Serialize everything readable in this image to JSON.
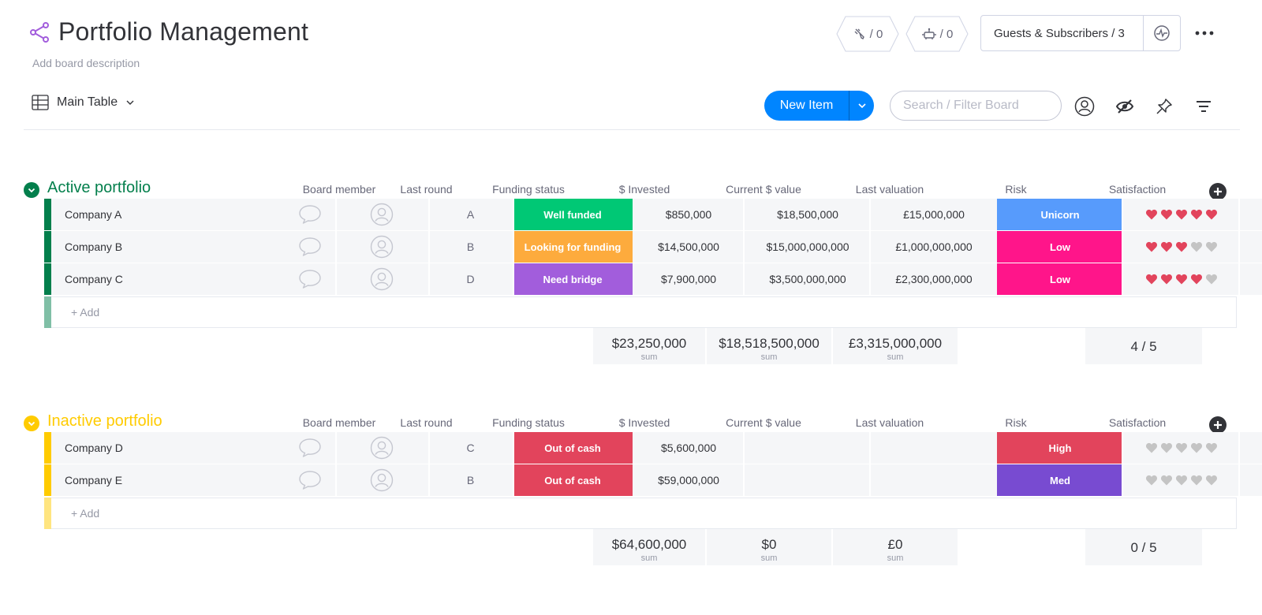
{
  "board": {
    "title": "Portfolio Management",
    "description": "Add board description",
    "integrations_count": "/ 0",
    "automations_count": "/ 0",
    "guests_label": "Guests & Subscribers / 3"
  },
  "toolbar": {
    "view_label": "Main Table",
    "new_item_label": "New Item",
    "search_placeholder": "Search / Filter Board"
  },
  "colors": {
    "active_group": "#037f4c",
    "inactive_group": "#ffcb00",
    "well_funded": "#00c875",
    "looking_for_funding": "#fdab3d",
    "need_bridge": "#a25ddc",
    "out_of_cash": "#e2445c",
    "unicorn": "#579bfc",
    "low": "#ff158a",
    "high": "#e2445c",
    "med": "#784bd1",
    "heart_on": "#e2445c",
    "heart_off": "#c4c4c4"
  },
  "columns": [
    "Board member",
    "Last round",
    "Funding status",
    "$ Invested",
    "Current $ value",
    "Last valuation",
    "Risk",
    "Satisfaction"
  ],
  "groups": [
    {
      "title": "Active portfolio",
      "rows": [
        {
          "name": "Company A",
          "last_round": "A",
          "funding_status": "Well funded",
          "funding_color": "#00c875",
          "invested": "$850,000",
          "current_value": "$18,500,000",
          "last_valuation": "£15,000,000",
          "risk": "Unicorn",
          "risk_color": "#579bfc",
          "satisfaction": 5
        },
        {
          "name": "Company B",
          "last_round": "B",
          "funding_status": "Looking for funding",
          "funding_color": "#fdab3d",
          "invested": "$14,500,000",
          "current_value": "$15,000,000,000",
          "last_valuation": "£1,000,000,000",
          "risk": "Low",
          "risk_color": "#ff158a",
          "satisfaction": 3
        },
        {
          "name": "Company C",
          "last_round": "D",
          "funding_status": "Need bridge",
          "funding_color": "#a25ddc",
          "invested": "$7,900,000",
          "current_value": "$3,500,000,000",
          "last_valuation": "£2,300,000,000",
          "risk": "Low",
          "risk_color": "#ff158a",
          "satisfaction": 4
        }
      ],
      "add_label": "+ Add",
      "totals": {
        "invested": "$23,250,000",
        "current_value": "$18,518,500,000",
        "last_valuation": "£3,315,000,000",
        "sum_label": "sum",
        "satisfaction": "4 / 5"
      }
    },
    {
      "title": "Inactive portfolio",
      "rows": [
        {
          "name": "Company D",
          "last_round": "C",
          "funding_status": "Out of cash",
          "funding_color": "#e2445c",
          "invested": "$5,600,000",
          "current_value": "",
          "last_valuation": "",
          "risk": "High",
          "risk_color": "#e2445c",
          "satisfaction": 0
        },
        {
          "name": "Company E",
          "last_round": "B",
          "funding_status": "Out of cash",
          "funding_color": "#e2445c",
          "invested": "$59,000,000",
          "current_value": "",
          "last_valuation": "",
          "risk": "Med",
          "risk_color": "#784bd1",
          "satisfaction": 0
        }
      ],
      "add_label": "+ Add",
      "totals": {
        "invested": "$64,600,000",
        "current_value": "$0",
        "last_valuation": "£0",
        "sum_label": "sum",
        "satisfaction": "0 / 5"
      }
    }
  ]
}
